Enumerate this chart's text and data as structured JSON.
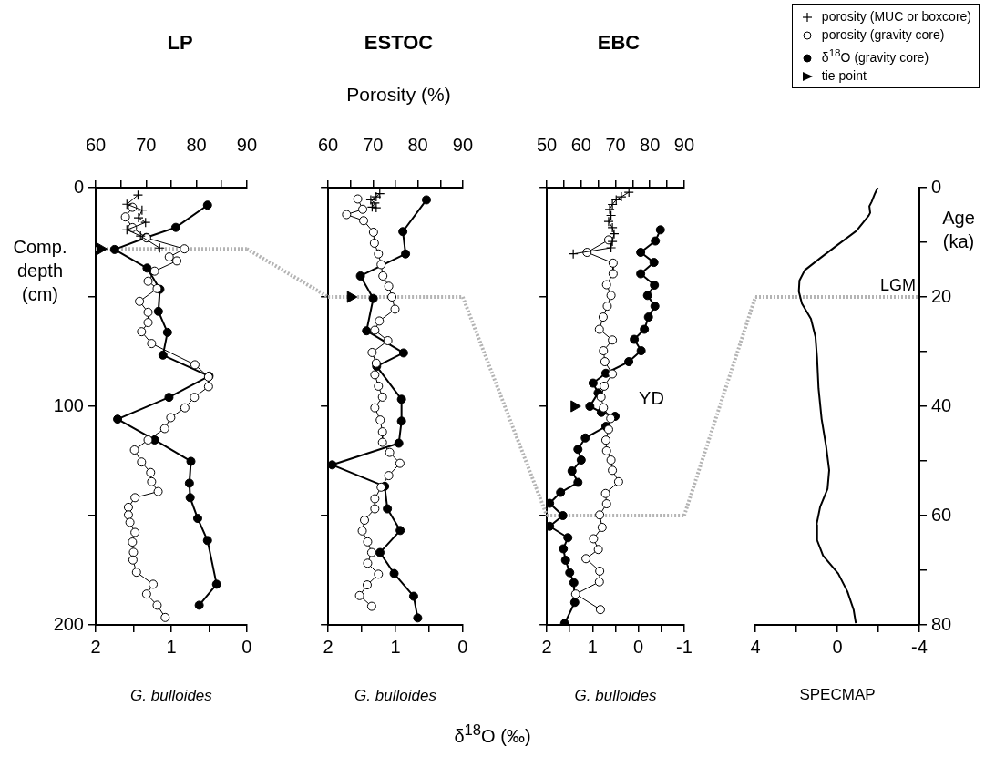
{
  "chart_data": [
    {
      "type": "line",
      "title": "LP",
      "legend": "top right",
      "ylabel": "Comp. depth (cm)",
      "xlabel": "G. bulloides",
      "xlim": [
        2,
        0
      ],
      "xticks": [
        2,
        {
          "value": 1.5,
          "label": null
        },
        1,
        {
          "value": 0.5,
          "label": null
        },
        0
      ],
      "x2lim": [
        60,
        90
      ],
      "x2ticks": [
        60,
        {
          "value": 65,
          "label": null
        },
        70,
        {
          "value": 75,
          "label": null
        },
        80,
        {
          "value": 85,
          "label": null
        },
        90
      ],
      "ylim": [
        200,
        0
      ],
      "yticks": [
        0,
        {
          "value": 50,
          "label": null
        },
        100,
        {
          "value": 150,
          "label": null
        },
        200
      ],
      "ref_lines": [
        {
          "axis": "y",
          "value": 28,
          "color": "#b4b4b4",
          "line_style": "dotted"
        }
      ],
      "series": [
        {
          "name": "porosity (MUC or boxcore)",
          "type": "line",
          "marker": "cross",
          "axis": "x2",
          "color": "#000000",
          "x": [
            68.4,
            66.2,
            69.2,
            68.5,
            69.9,
            66.2,
            68.9,
            72.7
          ],
          "values": [
            3.4,
            7.6,
            10.3,
            13.8,
            15.9,
            19.3,
            22.1,
            27.6
          ]
        },
        {
          "name": "porosity (gravity core)",
          "type": "line",
          "marker": "circle",
          "axis": "x2",
          "color": "#000000",
          "x": [
            67.3,
            65.9,
            67.3,
            70.1,
            77.6,
            74.6,
            76.1,
            71.7,
            70.4,
            72.2,
            68.7,
            70.4,
            70.4,
            69.1,
            71.1,
            79.7,
            82.4,
            82.4,
            79.6,
            77.7,
            74.9,
            73.7,
            70.4,
            67.7,
            69.1,
            70.9,
            71.1,
            72.4,
            67.8,
            66.5,
            66.5,
            66.8,
            67.8,
            67.3,
            67.5,
            67.4,
            68.1,
            71.4,
            70.1,
            72.2,
            73.8
          ],
          "values": [
            9.0,
            13.4,
            18.3,
            23.0,
            28.0,
            31.7,
            33.5,
            38.2,
            42.8,
            46.2,
            52.0,
            57.0,
            61.7,
            65.9,
            71.3,
            81.0,
            86.6,
            91.0,
            95.9,
            100.7,
            105.2,
            110.2,
            115.4,
            120.0,
            125.5,
            130.3,
            134.5,
            139.0,
            141.8,
            146.2,
            149.7,
            153.1,
            157.7,
            162.1,
            166.8,
            170.3,
            175.9,
            181.4,
            185.9,
            191.0,
            196.6
          ]
        },
        {
          "name": "δ$^{18}$O (gravity core)",
          "type": "line",
          "marker": "circle",
          "color": "#000000",
          "x": [
            0.52,
            0.94,
            1.33,
            1.75,
            1.32,
            1.15,
            1.17,
            1.05,
            1.11,
            0.5,
            1.03,
            1.71,
            1.22,
            0.74,
            0.76,
            0.75,
            0.65,
            0.52,
            0.4,
            0.63
          ],
          "values": [
            8.0,
            18.2,
            22.8,
            28.3,
            36.8,
            46.5,
            56.6,
            66.2,
            76.6,
            86.2,
            95.9,
            105.9,
            115.4,
            125.2,
            135.2,
            141.8,
            151.3,
            161.4,
            181.4,
            191.0
          ]
        },
        {
          "name": "tie point",
          "type": "scatter",
          "marker": "triangle",
          "axis": "x2",
          "color": "#000000",
          "x": [
            61
          ],
          "values": [
            28
          ]
        }
      ]
    },
    {
      "type": "line",
      "title": "ESTOC",
      "x2label": "Porosity (%)",
      "xlabel": "G. bulloides",
      "tick_labels": "x",
      "annotations": [
        "δ$^{18}$O (‰)"
      ],
      "xlim": [
        2,
        0
      ],
      "xticks": [
        2,
        {
          "value": 1.5,
          "label": null
        },
        1,
        {
          "value": 0.5,
          "label": null
        },
        0
      ],
      "x2lim": [
        60,
        90
      ],
      "x2ticks": [
        60,
        {
          "value": 65,
          "label": null
        },
        70,
        {
          "value": 75,
          "label": null
        },
        80,
        {
          "value": 85,
          "label": null
        },
        90
      ],
      "ylim": [
        200,
        0
      ],
      "yticks": [
        0,
        50,
        100,
        150,
        200
      ],
      "ref_lines": [
        {
          "axis": "y",
          "value": 50,
          "color": "#b4b4b4",
          "line_style": "dotted"
        }
      ],
      "series": [
        {
          "type": "line",
          "marker": "cross",
          "axis": "x2",
          "color": "#000000",
          "x": [
            71.5,
            70.7,
            69.5,
            70.4,
            69.8,
            70.7
          ],
          "values": [
            2.8,
            4.2,
            5.6,
            7.0,
            8.9,
            9.2
          ]
        },
        {
          "type": "line",
          "marker": "circle",
          "axis": "x2",
          "color": "#000000",
          "x": [
            66.6,
            67.7,
            64.1,
            67.9,
            70.1,
            70.3,
            71.2,
            71.8,
            72.2,
            73.5,
            74.2,
            74.9,
            71.4,
            70.4,
            73.3,
            69.8,
            70.7,
            70.4,
            71.2,
            72.1,
            70.4,
            71.6,
            72.1,
            72.1,
            73.7,
            76.0,
            73.5,
            71.8,
            70.4,
            70.4,
            68.1,
            67.6,
            68.8,
            69.7,
            68.8,
            71.2,
            68.7,
            67.0,
            69.7
          ],
          "values": [
            5.2,
            9.9,
            12.3,
            15.1,
            20.4,
            25.4,
            30.3,
            35.2,
            40.4,
            45.1,
            50.0,
            55.6,
            61.0,
            65.2,
            70.0,
            75.4,
            80.3,
            85.6,
            90.8,
            95.8,
            100.7,
            106.3,
            111.7,
            116.5,
            121.1,
            126.1,
            131.7,
            137.0,
            142.3,
            146.9,
            152.1,
            157.0,
            162.0,
            166.9,
            171.8,
            176.8,
            181.7,
            186.6,
            191.5
          ]
        },
        {
          "type": "line",
          "marker": "circle",
          "color": "#000000",
          "x": [
            0.54,
            0.89,
            0.85,
            1.52,
            1.33,
            1.43,
            0.88,
            1.28,
            0.91,
            0.91,
            0.95,
            1.94,
            1.16,
            1.12,
            0.93,
            1.23,
            1.02,
            0.73,
            0.67
          ],
          "values": [
            5.6,
            20.1,
            30.3,
            40.4,
            50.7,
            65.5,
            75.6,
            81.7,
            96.8,
            106.8,
            116.9,
            126.8,
            136.6,
            146.9,
            156.8,
            166.9,
            176.5,
            186.9,
            196.8
          ]
        },
        {
          "type": "scatter",
          "marker": "triangle",
          "axis": "x2",
          "color": "#000000",
          "x": [
            65
          ],
          "values": [
            50
          ]
        }
      ]
    },
    {
      "type": "line",
      "title": "EBC",
      "xlabel": "G. bulloides",
      "tick_labels": "x",
      "annotations": [
        "YD"
      ],
      "xlim": [
        2,
        -1
      ],
      "xticks": [
        2,
        {
          "value": 1.5,
          "label": null
        },
        1,
        {
          "value": 0.5,
          "label": null
        },
        0,
        {
          "value": -0.5,
          "label": null
        },
        -1
      ],
      "x2lim": [
        50,
        90
      ],
      "x2ticks": [
        50,
        {
          "value": 55,
          "label": null
        },
        60,
        {
          "value": 65,
          "label": null
        },
        70,
        {
          "value": 75,
          "label": null
        },
        80,
        {
          "value": 85,
          "label": null
        },
        90
      ],
      "ylim": [
        200,
        0
      ],
      "yticks": [
        0,
        50,
        100,
        150,
        200
      ],
      "ref_lines": [
        {
          "axis": "y",
          "value": 150,
          "color": "#b4b4b4",
          "line_style": "dotted"
        }
      ],
      "series": [
        {
          "type": "line",
          "marker": "cross",
          "axis": "x2",
          "color": "#000000",
          "x": [
            73.9,
            71.7,
            70.2,
            69.1,
            68.3,
            68.7,
            68.0,
            69.1,
            69.6,
            69.1,
            68.7,
            57.7
          ],
          "values": [
            2.1,
            4.2,
            5.6,
            7.7,
            9.9,
            12.7,
            15.5,
            18.3,
            21.1,
            24.6,
            27.5,
            30.3
          ]
        },
        {
          "type": "line",
          "marker": "circle",
          "axis": "x2",
          "color": "#000000",
          "x": [
            68.0,
            61.7,
            69.3,
            69.3,
            67.4,
            68.7,
            67.6,
            66.4,
            65.3,
            69.1,
            66.5,
            66.9,
            69.1,
            66.7,
            65.8,
            66.5,
            68.6,
            68.0,
            67.2,
            67.4,
            68.7,
            69.1,
            70.9,
            67.1,
            67.4,
            65.4,
            66.1,
            63.6,
            65.0,
            61.4,
            65.4,
            65.3,
            58.4,
            65.6
          ],
          "values": [
            23.9,
            29.6,
            34.5,
            39.4,
            44.4,
            49.3,
            54.2,
            59.2,
            64.8,
            69.7,
            74.6,
            79.6,
            85.2,
            90.8,
            95.8,
            100.7,
            105.6,
            110.6,
            115.5,
            120.4,
            124.6,
            129.3,
            134.5,
            139.9,
            144.6,
            149.7,
            155.4,
            160.6,
            165.5,
            169.7,
            175.4,
            180.3,
            185.9,
            193.0
          ]
        },
        {
          "type": "line",
          "marker": "circle",
          "color": "#000000",
          "x": [
            -0.48,
            -0.37,
            -0.05,
            -0.34,
            -0.05,
            -0.35,
            -0.2,
            -0.36,
            -0.22,
            -0.13,
            0.09,
            -0.06,
            0.21,
            0.71,
            0.99,
            0.88,
            1.06,
            0.81,
            0.51,
            0.71,
            1.16,
            1.32,
            1.25,
            1.45,
            1.32,
            1.7,
            1.94,
            1.65,
            1.94,
            1.54,
            1.64,
            1.59,
            1.5,
            1.41,
            1.39,
            1.61
          ],
          "values": [
            19.3,
            24.4,
            29.6,
            34.2,
            39.4,
            44.6,
            49.3,
            54.2,
            59.2,
            64.8,
            69.4,
            74.6,
            79.6,
            84.9,
            89.4,
            93.9,
            100.0,
            102.8,
            104.6,
            109.2,
            114.5,
            119.7,
            124.6,
            129.6,
            134.8,
            139.4,
            144.4,
            150.0,
            154.9,
            160.1,
            165.2,
            170.4,
            176.1,
            180.7,
            189.7,
            199.3
          ]
        },
        {
          "type": "scatter",
          "marker": "triangle",
          "axis": "x2",
          "color": "#000000",
          "x": [
            58
          ],
          "values": [
            100
          ]
        }
      ]
    },
    {
      "type": "line",
      "xlabel": "SPECMAP",
      "y2label": "Age (ka)",
      "xlim": [
        4,
        -4
      ],
      "xticks": [
        4,
        {
          "value": 2,
          "label": null
        },
        0,
        {
          "value": -2,
          "label": null
        },
        -4
      ],
      "y2lim": [
        80,
        0
      ],
      "y2ticks": [
        0,
        {
          "value": 10,
          "label": null
        },
        20,
        {
          "value": 30,
          "label": null
        },
        40,
        {
          "value": 50,
          "label": null
        },
        60,
        {
          "value": 70,
          "label": null
        },
        80
      ],
      "ref_lines": [
        {
          "axis": "y2",
          "value": 20,
          "label": "LGM",
          "color": "#b4b4b4",
          "line_style": "dotted"
        }
      ],
      "series": [
        {
          "type": "line",
          "marker": "none",
          "axis": "y2",
          "color": "#000000",
          "x": [
            -1.97,
            -1.82,
            -1.67,
            -1.56,
            -1.6,
            -1.53,
            -0.93,
            -0.04,
            0.84,
            1.59,
            1.85,
            1.88,
            1.73,
            1.29,
            1.07,
            0.99,
            0.92,
            0.77,
            0.55,
            0.4,
            0.48,
            0.84,
            1.02,
            0.99,
            0.7,
            -0.04,
            -0.49,
            -0.79,
            -0.9
          ],
          "values": [
            0,
            1.2,
            2.6,
            3.4,
            4.6,
            5.1,
            7.9,
            10.4,
            12.9,
            15.1,
            17.0,
            19.0,
            21.2,
            24.0,
            27.3,
            31.2,
            36.7,
            42.3,
            47.3,
            51.7,
            55.1,
            58.4,
            61.7,
            64.5,
            67.3,
            70.6,
            73.9,
            77.2,
            79.7
          ]
        }
      ]
    }
  ]
}
